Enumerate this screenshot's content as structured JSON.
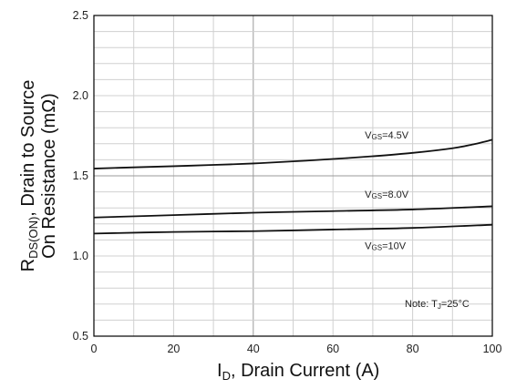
{
  "chart_data": {
    "type": "line",
    "xlabel": {
      "prefix": "I",
      "sub": "D",
      "rest": ", Drain Current (A)"
    },
    "ylabel": {
      "line1_prefix": "R",
      "line1_sub": "DS(ON)",
      "line1_rest": ", Drain to Source",
      "line2": "On Resistance (mΩ)"
    },
    "xlim": [
      0,
      100
    ],
    "ylim": [
      0.5,
      2.5
    ],
    "x_ticks": [
      0,
      20,
      40,
      60,
      80,
      100
    ],
    "x_tick_labels": [
      "0",
      "20",
      "40",
      "60",
      "80",
      "100"
    ],
    "y_ticks": [
      0.5,
      1.0,
      1.5,
      2.0,
      2.5
    ],
    "y_tick_labels": [
      "0.5",
      "1.0",
      "1.5",
      "2.0",
      "2.5"
    ],
    "grid": true,
    "note": {
      "prefix": "Note:  T",
      "sub": "J",
      "rest": "=25°C"
    },
    "series": [
      {
        "label": {
          "prefix": "V",
          "sub": "GS",
          "rest": "=4.5V"
        },
        "x": [
          0,
          10,
          20,
          30,
          40,
          50,
          60,
          70,
          80,
          90,
          95,
          100
        ],
        "y": [
          1.545,
          1.553,
          1.56,
          1.568,
          1.577,
          1.59,
          1.605,
          1.622,
          1.643,
          1.672,
          1.695,
          1.725
        ]
      },
      {
        "label": {
          "prefix": "V",
          "sub": "GS",
          "rest": "=8.0V"
        },
        "x": [
          0,
          20,
          40,
          60,
          80,
          100
        ],
        "y": [
          1.24,
          1.255,
          1.27,
          1.28,
          1.29,
          1.31
        ]
      },
      {
        "label": {
          "prefix": "V",
          "sub": "GS",
          "rest": "=10V"
        },
        "x": [
          0,
          20,
          40,
          60,
          80,
          100
        ],
        "y": [
          1.14,
          1.15,
          1.155,
          1.165,
          1.175,
          1.195
        ]
      }
    ]
  }
}
